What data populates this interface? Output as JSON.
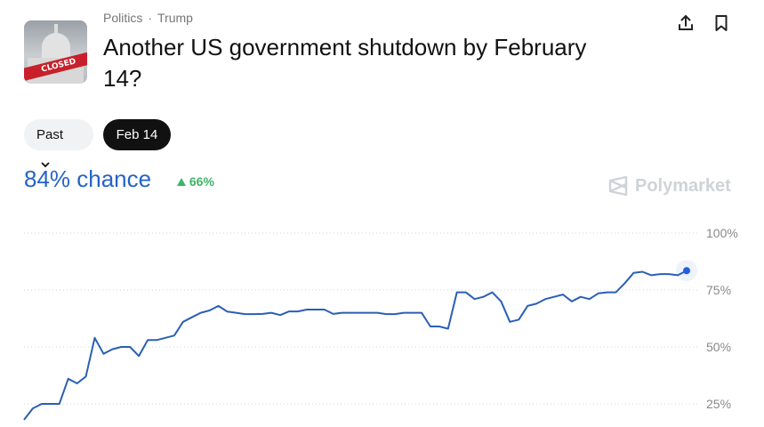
{
  "header": {
    "thumbnail_text": "CLOSED",
    "breadcrumbs": [
      "Politics",
      "Trump"
    ],
    "breadcrumb_separator": "·",
    "title": "Another US government shutdown by February 14?",
    "actions": [
      {
        "icon": "share-icon"
      },
      {
        "icon": "bookmark-icon"
      }
    ]
  },
  "filters": {
    "past_label": "Past",
    "selected_date": "Feb 14"
  },
  "summary": {
    "chance": "84% chance",
    "change": "66%",
    "change_direction": "up",
    "change_color": "#3cb567",
    "accent": "#2463c7"
  },
  "brand": {
    "name": "Polymarket"
  },
  "chart_data": {
    "type": "line",
    "y_ticks": [
      "100%",
      "75%",
      "50%",
      "25%"
    ],
    "y_tick_values": [
      100,
      75,
      50,
      25
    ],
    "ylim": [
      17,
      100
    ],
    "grid": "dotted horizontal",
    "line_color": "#2b5fb5",
    "series": [
      {
        "values": [
          18,
          23,
          25,
          25,
          25,
          36,
          34,
          37,
          54,
          47,
          49,
          50,
          50,
          46,
          53,
          53,
          54,
          55,
          61,
          63,
          65,
          66,
          68,
          65.5,
          65,
          64.4,
          64.4,
          64.5,
          65,
          64,
          65.6,
          65.6,
          66.4,
          66.4,
          66.4,
          64.5,
          65,
          65,
          65,
          65,
          65,
          64.4,
          64.4,
          65,
          65,
          65,
          59,
          59,
          58,
          74,
          74,
          71,
          72,
          74,
          70,
          61,
          62,
          68,
          69,
          71,
          72,
          73,
          70,
          72,
          71,
          73.5,
          74,
          74,
          78,
          82.5,
          83,
          81.5,
          82,
          82,
          81.5,
          83.5
        ]
      }
    ]
  }
}
